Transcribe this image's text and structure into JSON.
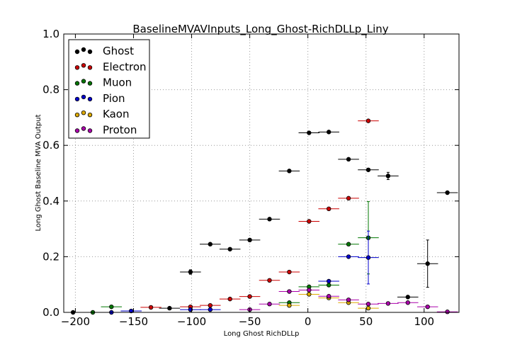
{
  "chart_data": {
    "type": "scatter",
    "title": "BaselineMVAVInputs_Long_Ghost-RichDLLp_Liny",
    "xlabel": "Long Ghost RichDLLp",
    "ylabel": "Long Ghost Baseline MVA Output",
    "xlim": [
      -210,
      130
    ],
    "ylim": [
      0,
      1.0
    ],
    "xticks": [
      -200,
      -150,
      -100,
      -50,
      0,
      50,
      100
    ],
    "xtick_labels": [
      "−200",
      "−150",
      "−100",
      "−50",
      "0",
      "50",
      "100"
    ],
    "yticks": [
      0.0,
      0.2,
      0.4,
      0.6,
      0.8,
      1.0
    ],
    "ytick_labels": [
      "0.0",
      "0.2",
      "0.4",
      "0.6",
      "0.8",
      "1.0"
    ],
    "grid": true,
    "legend_position": "top-left",
    "series": [
      {
        "name": "Ghost",
        "color": "#000000",
        "points": [
          {
            "x": -202,
            "y": 0.0,
            "xerr": 0,
            "yerr": 0
          },
          {
            "x": -119,
            "y": 0.015,
            "xerr": 9,
            "yerr": 0.004
          },
          {
            "x": -101,
            "y": 0.145,
            "xerr": 9,
            "yerr": 0.008
          },
          {
            "x": -84,
            "y": 0.245,
            "xerr": 9,
            "yerr": 0.004
          },
          {
            "x": -67,
            "y": 0.227,
            "xerr": 9,
            "yerr": 0.004
          },
          {
            "x": -50,
            "y": 0.26,
            "xerr": 9,
            "yerr": 0.004
          },
          {
            "x": -33,
            "y": 0.335,
            "xerr": 9,
            "yerr": 0.004
          },
          {
            "x": -16,
            "y": 0.508,
            "xerr": 9,
            "yerr": 0.004
          },
          {
            "x": 1,
            "y": 0.645,
            "xerr": 9,
            "yerr": 0.004
          },
          {
            "x": 18,
            "y": 0.648,
            "xerr": 9,
            "yerr": 0.004
          },
          {
            "x": 35,
            "y": 0.55,
            "xerr": 9,
            "yerr": 0.004
          },
          {
            "x": 52,
            "y": 0.512,
            "xerr": 9,
            "yerr": 0.005
          },
          {
            "x": 69,
            "y": 0.49,
            "xerr": 9,
            "yerr": 0.013
          },
          {
            "x": 86,
            "y": 0.055,
            "xerr": 9,
            "yerr": 0.004
          },
          {
            "x": 103,
            "y": 0.175,
            "xerr": 9,
            "yerr": 0.085
          },
          {
            "x": 120,
            "y": 0.43,
            "xerr": 9,
            "yerr": 0.004
          }
        ]
      },
      {
        "name": "Electron",
        "color": "#cc0000",
        "points": [
          {
            "x": -135,
            "y": 0.018,
            "xerr": 9,
            "yerr": 0.003
          },
          {
            "x": -101,
            "y": 0.02,
            "xerr": 9,
            "yerr": 0.003
          },
          {
            "x": -84,
            "y": 0.025,
            "xerr": 9,
            "yerr": 0.003
          },
          {
            "x": -67,
            "y": 0.048,
            "xerr": 9,
            "yerr": 0.003
          },
          {
            "x": -50,
            "y": 0.057,
            "xerr": 9,
            "yerr": 0.003
          },
          {
            "x": -33,
            "y": 0.115,
            "xerr": 9,
            "yerr": 0.003
          },
          {
            "x": -16,
            "y": 0.145,
            "xerr": 9,
            "yerr": 0.003
          },
          {
            "x": 1,
            "y": 0.327,
            "xerr": 9,
            "yerr": 0.003
          },
          {
            "x": 18,
            "y": 0.372,
            "xerr": 9,
            "yerr": 0.003
          },
          {
            "x": 35,
            "y": 0.41,
            "xerr": 9,
            "yerr": 0.004
          },
          {
            "x": 52,
            "y": 0.688,
            "xerr": 9,
            "yerr": 0.004
          }
        ]
      },
      {
        "name": "Muon",
        "color": "#007700",
        "points": [
          {
            "x": -185,
            "y": 0.0,
            "xerr": 0,
            "yerr": 0
          },
          {
            "x": -169,
            "y": 0.02,
            "xerr": 9,
            "yerr": 0.003
          },
          {
            "x": -16,
            "y": 0.035,
            "xerr": 9,
            "yerr": 0.003
          },
          {
            "x": 1,
            "y": 0.092,
            "xerr": 9,
            "yerr": 0.003
          },
          {
            "x": 18,
            "y": 0.098,
            "xerr": 9,
            "yerr": 0.003
          },
          {
            "x": 35,
            "y": 0.245,
            "xerr": 9,
            "yerr": 0.003
          },
          {
            "x": 52,
            "y": 0.268,
            "xerr": 9,
            "yerr": 0.13
          }
        ]
      },
      {
        "name": "Pion",
        "color": "#0000cc",
        "points": [
          {
            "x": -169,
            "y": 0.0,
            "xerr": 0,
            "yerr": 0
          },
          {
            "x": -152,
            "y": 0.005,
            "xerr": 9,
            "yerr": 0.002
          },
          {
            "x": -101,
            "y": 0.01,
            "xerr": 9,
            "yerr": 0.002
          },
          {
            "x": -84,
            "y": 0.01,
            "xerr": 9,
            "yerr": 0.002
          },
          {
            "x": 18,
            "y": 0.112,
            "xerr": 9,
            "yerr": 0.003
          },
          {
            "x": 35,
            "y": 0.2,
            "xerr": 9,
            "yerr": 0.003
          },
          {
            "x": 52,
            "y": 0.197,
            "xerr": 9,
            "yerr": 0.095
          }
        ]
      },
      {
        "name": "Kaon",
        "color": "#ddaa00",
        "points": [
          {
            "x": -16,
            "y": 0.025,
            "xerr": 9,
            "yerr": 0.003
          },
          {
            "x": 1,
            "y": 0.065,
            "xerr": 9,
            "yerr": 0.003
          },
          {
            "x": 18,
            "y": 0.052,
            "xerr": 9,
            "yerr": 0.003
          },
          {
            "x": 35,
            "y": 0.035,
            "xerr": 9,
            "yerr": 0.003
          },
          {
            "x": 52,
            "y": 0.015,
            "xerr": 9,
            "yerr": 0.003
          }
        ]
      },
      {
        "name": "Proton",
        "color": "#aa00aa",
        "points": [
          {
            "x": -50,
            "y": 0.01,
            "xerr": 9,
            "yerr": 0.002
          },
          {
            "x": -33,
            "y": 0.03,
            "xerr": 9,
            "yerr": 0.003
          },
          {
            "x": -16,
            "y": 0.075,
            "xerr": 9,
            "yerr": 0.003
          },
          {
            "x": 1,
            "y": 0.08,
            "xerr": 9,
            "yerr": 0.003
          },
          {
            "x": 18,
            "y": 0.058,
            "xerr": 9,
            "yerr": 0.003
          },
          {
            "x": 35,
            "y": 0.045,
            "xerr": 9,
            "yerr": 0.003
          },
          {
            "x": 52,
            "y": 0.03,
            "xerr": 9,
            "yerr": 0.003
          },
          {
            "x": 69,
            "y": 0.032,
            "xerr": 9,
            "yerr": 0.003
          },
          {
            "x": 86,
            "y": 0.035,
            "xerr": 9,
            "yerr": 0.003
          },
          {
            "x": 103,
            "y": 0.02,
            "xerr": 9,
            "yerr": 0.003
          },
          {
            "x": 120,
            "y": 0.002,
            "xerr": 9,
            "yerr": 0.002
          }
        ]
      }
    ]
  }
}
